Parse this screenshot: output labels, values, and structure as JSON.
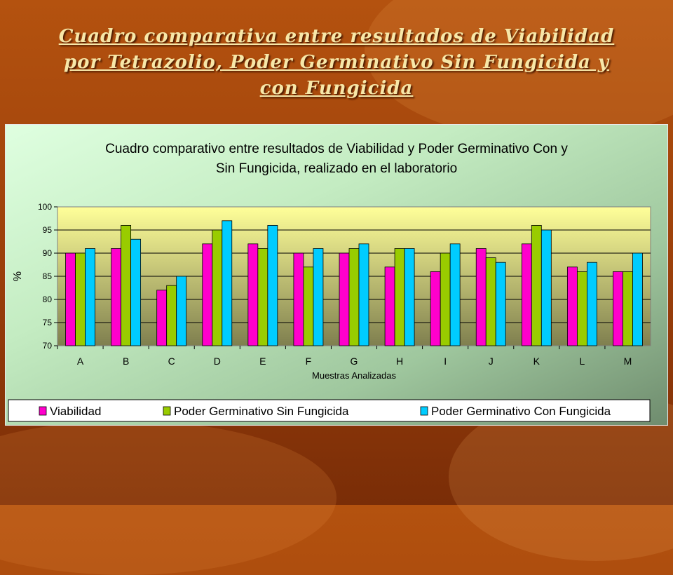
{
  "slide": {
    "title": "Cuadro comparativa entre resultados de Viabilidad por Tetrazolio, Poder Germinativo Sin Fungicida y con Fungicida"
  },
  "colors": {
    "viabilidad": "#ff00cc",
    "sin_fungicida": "#99cc00",
    "con_fungicida": "#00ccff",
    "plot_top": "#ffff99",
    "plot_bottom": "#7f7f4f"
  },
  "chart_data": {
    "type": "bar",
    "title_line1": "Cuadro comparativo entre resultados de Viabilidad y Poder Germinativo Con y",
    "title_line2": "Sin Fungicida, realizado en el laboratorio",
    "xlabel": "Muestras Analizadas",
    "ylabel": "%",
    "ylim": [
      70,
      100
    ],
    "yticks": [
      "70",
      "75",
      "80",
      "85",
      "90",
      "95",
      "100"
    ],
    "grid": true,
    "legend_position": "bottom",
    "categories": [
      "A",
      "B",
      "C",
      "D",
      "E",
      "F",
      "G",
      "H",
      "I",
      "J",
      "K",
      "L",
      "M"
    ],
    "series": [
      {
        "name": "Viabilidad",
        "values": [
          90,
          91,
          82,
          92,
          92,
          90,
          90,
          87,
          86,
          91,
          92,
          87,
          86
        ]
      },
      {
        "name": "Poder Germinativo Sin Fungicida",
        "values": [
          90,
          96,
          83,
          95,
          91,
          87,
          91,
          91,
          90,
          89,
          96,
          86,
          86
        ]
      },
      {
        "name": "Poder Germinativo Con Fungicida",
        "values": [
          91,
          93,
          85,
          97,
          96,
          91,
          92,
          91,
          92,
          88,
          95,
          88,
          90
        ]
      }
    ]
  }
}
